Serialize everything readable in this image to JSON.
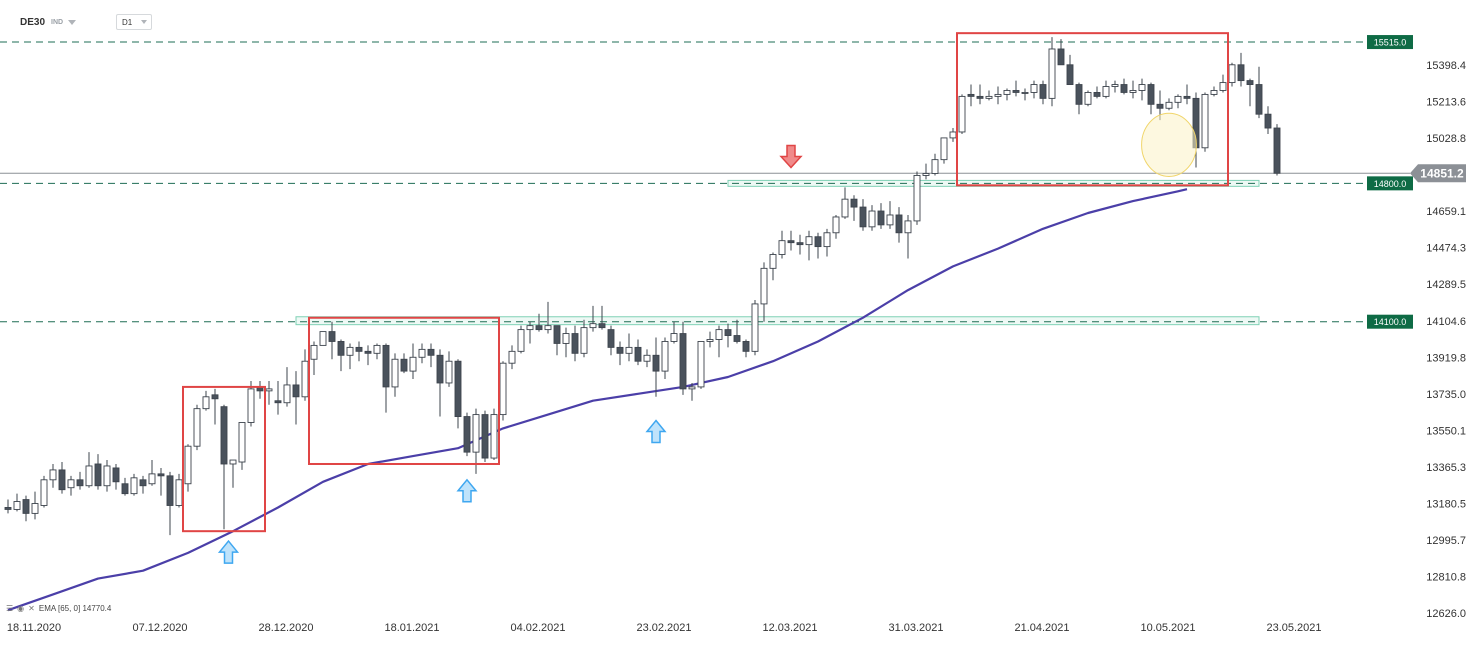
{
  "header": {
    "symbol": "DE30",
    "symbol_type": "IND",
    "timeframe": "D1"
  },
  "legend": {
    "icons": [
      "list-icon",
      "eye-icon",
      "close-icon"
    ],
    "text": "EMA [65, 0] 14770.4"
  },
  "colors": {
    "up_candle_fill": "#ffffff",
    "down_candle_fill": "#4a525c",
    "candle_outline": "#3d444d",
    "ema_line": "#4b3fa8",
    "range_box": "#e04545",
    "zone_fill": "#e7f7f1",
    "zone_border": "#7fd1b5",
    "level_line": "#1e6d54",
    "level_label_bg": "#0e6b45",
    "price_label_bg": "#8c9096",
    "arrow_up": "#3fa7f0",
    "arrow_down": "#e04545",
    "highlight": "#fbf3c6"
  },
  "chart_data": {
    "type": "candlestick",
    "title": "",
    "xlabel": "",
    "ylabel": "",
    "ylim": [
      12626.0,
      15583.6
    ],
    "grid": false,
    "y_ticks": [
      "15398.4",
      "15213.6",
      "15028.8",
      "14659.1",
      "14474.3",
      "14289.5",
      "14104.6",
      "13919.8",
      "13735.0",
      "13550.1",
      "13365.3",
      "13180.5",
      "12995.7",
      "12810.8",
      "12626.0"
    ],
    "x_ticks": [
      "18.11.2020",
      "07.12.2020",
      "28.12.2020",
      "18.01.2021",
      "04.02.2021",
      "23.02.2021",
      "12.03.2021",
      "31.03.2021",
      "21.04.2021",
      "10.05.2021",
      "23.05.2021"
    ],
    "x_tick_bars": [
      0,
      14,
      28,
      42,
      56,
      70,
      84,
      98,
      112,
      126,
      140
    ],
    "levels": [
      {
        "label": "15515.0",
        "value": 15515.0
      },
      {
        "label": "14800.0",
        "value": 14800.0
      },
      {
        "label": "14100.0",
        "value": 14100.0
      }
    ],
    "current_price": {
      "label": "14851.2",
      "value": 14851.2
    },
    "ema": {
      "name": "EMA [65, 0]",
      "last_value": 14770.4,
      "points": [
        [
          0,
          12640
        ],
        [
          5,
          12720
        ],
        [
          10,
          12800
        ],
        [
          15,
          12840
        ],
        [
          20,
          12930
        ],
        [
          25,
          13040
        ],
        [
          30,
          13160
        ],
        [
          35,
          13290
        ],
        [
          40,
          13380
        ],
        [
          45,
          13420
        ],
        [
          50,
          13460
        ],
        [
          55,
          13560
        ],
        [
          60,
          13630
        ],
        [
          65,
          13700
        ],
        [
          70,
          13735
        ],
        [
          75,
          13770
        ],
        [
          80,
          13820
        ],
        [
          85,
          13900
        ],
        [
          90,
          14000
        ],
        [
          95,
          14120
        ],
        [
          100,
          14260
        ],
        [
          105,
          14380
        ],
        [
          110,
          14470
        ],
        [
          115,
          14570
        ],
        [
          120,
          14650
        ],
        [
          125,
          14710
        ],
        [
          130,
          14760
        ],
        [
          131,
          14770.4
        ]
      ]
    },
    "candles": [
      [
        13160,
        13200,
        13130,
        13150
      ],
      [
        13150,
        13230,
        13140,
        13190
      ],
      [
        13200,
        13220,
        13090,
        13130
      ],
      [
        13130,
        13240,
        13100,
        13180
      ],
      [
        13170,
        13320,
        13160,
        13300
      ],
      [
        13300,
        13380,
        13260,
        13350
      ],
      [
        13350,
        13390,
        13230,
        13250
      ],
      [
        13260,
        13320,
        13220,
        13300
      ],
      [
        13300,
        13340,
        13250,
        13270
      ],
      [
        13270,
        13440,
        13260,
        13370
      ],
      [
        13380,
        13430,
        13250,
        13270
      ],
      [
        13270,
        13400,
        13240,
        13370
      ],
      [
        13360,
        13380,
        13250,
        13290
      ],
      [
        13280,
        13310,
        13220,
        13230
      ],
      [
        13230,
        13330,
        13220,
        13310
      ],
      [
        13300,
        13320,
        13230,
        13270
      ],
      [
        13280,
        13400,
        13270,
        13330
      ],
      [
        13330,
        13360,
        13220,
        13320
      ],
      [
        13320,
        13340,
        13020,
        13170
      ],
      [
        13170,
        13330,
        13160,
        13300
      ],
      [
        13280,
        13480,
        13240,
        13470
      ],
      [
        13470,
        13680,
        13450,
        13660
      ],
      [
        13660,
        13750,
        13650,
        13720
      ],
      [
        13730,
        13760,
        13580,
        13710
      ],
      [
        13670,
        13680,
        13050,
        13380
      ],
      [
        13380,
        13400,
        13260,
        13400
      ],
      [
        13390,
        13580,
        13350,
        13590
      ],
      [
        13590,
        13800,
        13570,
        13760
      ],
      [
        13770,
        13800,
        13710,
        13750
      ],
      [
        13750,
        13800,
        13680,
        13760
      ],
      [
        13700,
        13800,
        13630,
        13690
      ],
      [
        13690,
        13870,
        13670,
        13780
      ],
      [
        13780,
        13850,
        13580,
        13720
      ],
      [
        13720,
        13960,
        13700,
        13900
      ],
      [
        13910,
        14000,
        13830,
        13980
      ],
      [
        13980,
        14050,
        13980,
        14050
      ],
      [
        14050,
        14100,
        13910,
        14000
      ],
      [
        14000,
        14010,
        13850,
        13930
      ],
      [
        13930,
        13990,
        13860,
        13970
      ],
      [
        13970,
        14000,
        13900,
        13950
      ],
      [
        13950,
        13980,
        13880,
        13940
      ],
      [
        13940,
        13990,
        13910,
        13980
      ],
      [
        13980,
        13990,
        13640,
        13770
      ],
      [
        13770,
        13940,
        13720,
        13910
      ],
      [
        13910,
        13940,
        13840,
        13850
      ],
      [
        13850,
        13990,
        13810,
        13920
      ],
      [
        13920,
        13990,
        13890,
        13960
      ],
      [
        13960,
        13990,
        13870,
        13930
      ],
      [
        13930,
        13960,
        13620,
        13790
      ],
      [
        13790,
        13950,
        13770,
        13900
      ],
      [
        13900,
        13910,
        13560,
        13620
      ],
      [
        13620,
        13640,
        13420,
        13440
      ],
      [
        13440,
        13660,
        13330,
        13630
      ],
      [
        13630,
        13650,
        13390,
        13410
      ],
      [
        13410,
        13660,
        13400,
        13630
      ],
      [
        13630,
        13900,
        13600,
        13890
      ],
      [
        13890,
        13980,
        13860,
        13950
      ],
      [
        13950,
        14080,
        13940,
        14060
      ],
      [
        14060,
        14100,
        13990,
        14080
      ],
      [
        14080,
        14140,
        14050,
        14060
      ],
      [
        14060,
        14200,
        14040,
        14080
      ],
      [
        14080,
        14080,
        13930,
        13990
      ],
      [
        13990,
        14070,
        13920,
        14040
      ],
      [
        14040,
        14080,
        13900,
        13940
      ],
      [
        13940,
        14110,
        13920,
        14070
      ],
      [
        14070,
        14180,
        14050,
        14090
      ],
      [
        14090,
        14180,
        14060,
        14070
      ],
      [
        14060,
        14080,
        13930,
        13970
      ],
      [
        13970,
        14000,
        13880,
        13940
      ],
      [
        13940,
        14040,
        13900,
        13970
      ],
      [
        13970,
        14010,
        13880,
        13900
      ],
      [
        13900,
        13960,
        13870,
        13930
      ],
      [
        13930,
        14020,
        13720,
        13850
      ],
      [
        13850,
        14020,
        13810,
        14000
      ],
      [
        14000,
        14100,
        13990,
        14040
      ],
      [
        14040,
        14100,
        13730,
        13760
      ],
      [
        13760,
        13790,
        13700,
        13770
      ],
      [
        13770,
        14000,
        13760,
        14000
      ],
      [
        14000,
        14050,
        13970,
        14010
      ],
      [
        14010,
        14080,
        13920,
        14060
      ],
      [
        14060,
        14090,
        13970,
        14030
      ],
      [
        14030,
        14110,
        13990,
        14000
      ],
      [
        14000,
        14010,
        13920,
        13950
      ],
      [
        13950,
        14210,
        13930,
        14190
      ],
      [
        14190,
        14400,
        14100,
        14370
      ],
      [
        14370,
        14450,
        14310,
        14440
      ],
      [
        14440,
        14560,
        14420,
        14510
      ],
      [
        14510,
        14560,
        14460,
        14500
      ],
      [
        14500,
        14540,
        14440,
        14490
      ],
      [
        14490,
        14560,
        14410,
        14530
      ],
      [
        14530,
        14550,
        14420,
        14480
      ],
      [
        14480,
        14570,
        14430,
        14550
      ],
      [
        14550,
        14640,
        14520,
        14630
      ],
      [
        14630,
        14780,
        14620,
        14720
      ],
      [
        14720,
        14740,
        14610,
        14680
      ],
      [
        14680,
        14720,
        14560,
        14580
      ],
      [
        14580,
        14690,
        14560,
        14660
      ],
      [
        14660,
        14700,
        14570,
        14590
      ],
      [
        14590,
        14710,
        14570,
        14640
      ],
      [
        14640,
        14680,
        14500,
        14550
      ],
      [
        14550,
        14640,
        14420,
        14610
      ],
      [
        14610,
        14860,
        14590,
        14840
      ],
      [
        14840,
        14900,
        14820,
        14850
      ],
      [
        14850,
        14950,
        14840,
        14920
      ],
      [
        14920,
        15020,
        14900,
        15030
      ],
      [
        15030,
        15080,
        15010,
        15060
      ],
      [
        15060,
        15250,
        15050,
        15240
      ],
      [
        15250,
        15300,
        15190,
        15240
      ],
      [
        15240,
        15300,
        15200,
        15230
      ],
      [
        15230,
        15270,
        15220,
        15240
      ],
      [
        15240,
        15290,
        15200,
        15250
      ],
      [
        15250,
        15280,
        15220,
        15270
      ],
      [
        15270,
        15320,
        15240,
        15260
      ],
      [
        15260,
        15280,
        15220,
        15260
      ],
      [
        15260,
        15320,
        15230,
        15300
      ],
      [
        15300,
        15320,
        15200,
        15230
      ],
      [
        15230,
        15540,
        15190,
        15480
      ],
      [
        15480,
        15530,
        15400,
        15400
      ],
      [
        15400,
        15450,
        15300,
        15300
      ],
      [
        15300,
        15310,
        15150,
        15200
      ],
      [
        15200,
        15270,
        15190,
        15260
      ],
      [
        15260,
        15290,
        15230,
        15240
      ],
      [
        15240,
        15320,
        15230,
        15290
      ],
      [
        15290,
        15320,
        15260,
        15300
      ],
      [
        15300,
        15330,
        15250,
        15260
      ],
      [
        15260,
        15320,
        15230,
        15270
      ],
      [
        15270,
        15330,
        15220,
        15300
      ],
      [
        15300,
        15310,
        15150,
        15200
      ],
      [
        15200,
        15270,
        15120,
        15180
      ],
      [
        15180,
        15230,
        15170,
        15210
      ],
      [
        15210,
        15250,
        15180,
        15240
      ],
      [
        15240,
        15300,
        15200,
        15230
      ],
      [
        15230,
        15260,
        14880,
        14980
      ],
      [
        14980,
        15260,
        14960,
        15250
      ],
      [
        15250,
        15290,
        15240,
        15270
      ],
      [
        15270,
        15350,
        15260,
        15310
      ],
      [
        15310,
        15410,
        15290,
        15400
      ],
      [
        15400,
        15460,
        15290,
        15320
      ],
      [
        15320,
        15330,
        15190,
        15300
      ],
      [
        15300,
        15390,
        15130,
        15150
      ],
      [
        15150,
        15190,
        15050,
        15080
      ],
      [
        15080,
        15100,
        14840,
        14851.2
      ]
    ],
    "annotations": {
      "boxes": [
        {
          "x0": 20,
          "x1": 28,
          "y0": 13040,
          "y1": 13770
        },
        {
          "x0": 34,
          "x1": 54,
          "y0": 13380,
          "y1": 14120
        },
        {
          "x0": 106,
          "x1": 135,
          "y0": 14790,
          "y1": 15560
        }
      ],
      "zones": [
        {
          "x0": 80,
          "x1": 139,
          "y0": 14785,
          "y1": 14815
        },
        {
          "x0": 32,
          "x1": 139,
          "y0": 14085,
          "y1": 14125
        }
      ],
      "arrows_up": [
        {
          "x": 24.5,
          "y": 12990
        },
        {
          "x": 51,
          "y": 13300
        },
        {
          "x": 72,
          "y": 13600
        }
      ],
      "arrows_down": [
        {
          "x": 87,
          "y": 14880
        }
      ],
      "highlight": {
        "x": 129,
        "y": 14995,
        "rx_bars": 2.1,
        "ry_value": 160
      }
    }
  }
}
